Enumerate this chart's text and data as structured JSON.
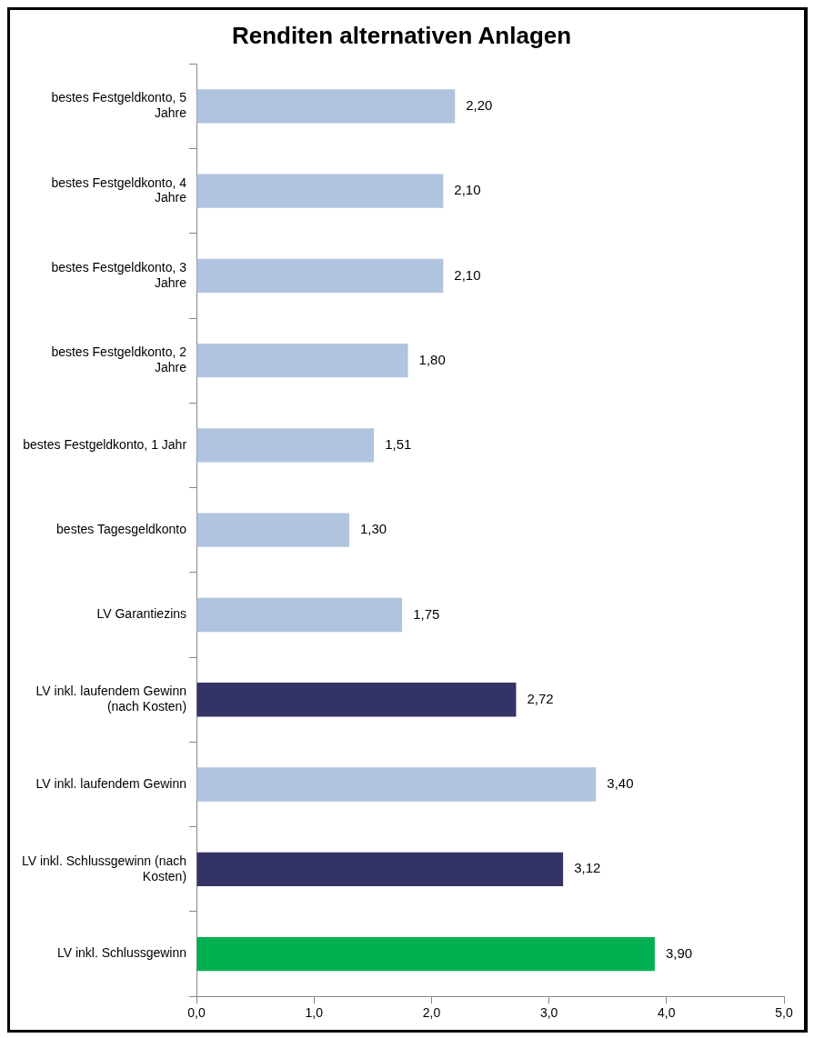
{
  "chart_data": {
    "type": "bar",
    "orientation": "horizontal",
    "title": "Renditen alternativen Anlagen",
    "categories": [
      "bestes Festgeldkonto, 5 Jahre",
      "bestes Festgeldkonto, 4 Jahre",
      "bestes Festgeldkonto, 3 Jahre",
      "bestes Festgeldkonto, 2 Jahre",
      "bestes Festgeldkonto, 1 Jahr",
      "bestes Tagesgeldkonto",
      "LV Garantiezins",
      "LV inkl. laufendem Gewinn (nach Kosten)",
      "LV inkl. laufendem Gewinn",
      "LV inkl. Schlussgewinn (nach Kosten)",
      "LV inkl. Schlussgewinn"
    ],
    "values": [
      2.2,
      2.1,
      2.1,
      1.8,
      1.51,
      1.3,
      1.75,
      2.72,
      3.4,
      3.12,
      3.9
    ],
    "value_labels": [
      "2,20",
      "2,10",
      "2,10",
      "1,80",
      "1,51",
      "1,30",
      "1,75",
      "2,72",
      "3,40",
      "3,12",
      "3,90"
    ],
    "colors": [
      "#b0c4df",
      "#b0c4df",
      "#b0c4df",
      "#b0c4df",
      "#b0c4df",
      "#b0c4df",
      "#b0c4df",
      "#333366",
      "#b0c4df",
      "#333366",
      "#00b050"
    ],
    "xlim": [
      0,
      5
    ],
    "xticks": [
      {
        "value": 0,
        "label": "0,0"
      },
      {
        "value": 1,
        "label": "1,0"
      },
      {
        "value": 2,
        "label": "2,0"
      },
      {
        "value": 3,
        "label": "3,0"
      },
      {
        "value": 4,
        "label": "4,0"
      },
      {
        "value": 5,
        "label": "5,0"
      }
    ],
    "grid": false,
    "legend": false
  }
}
